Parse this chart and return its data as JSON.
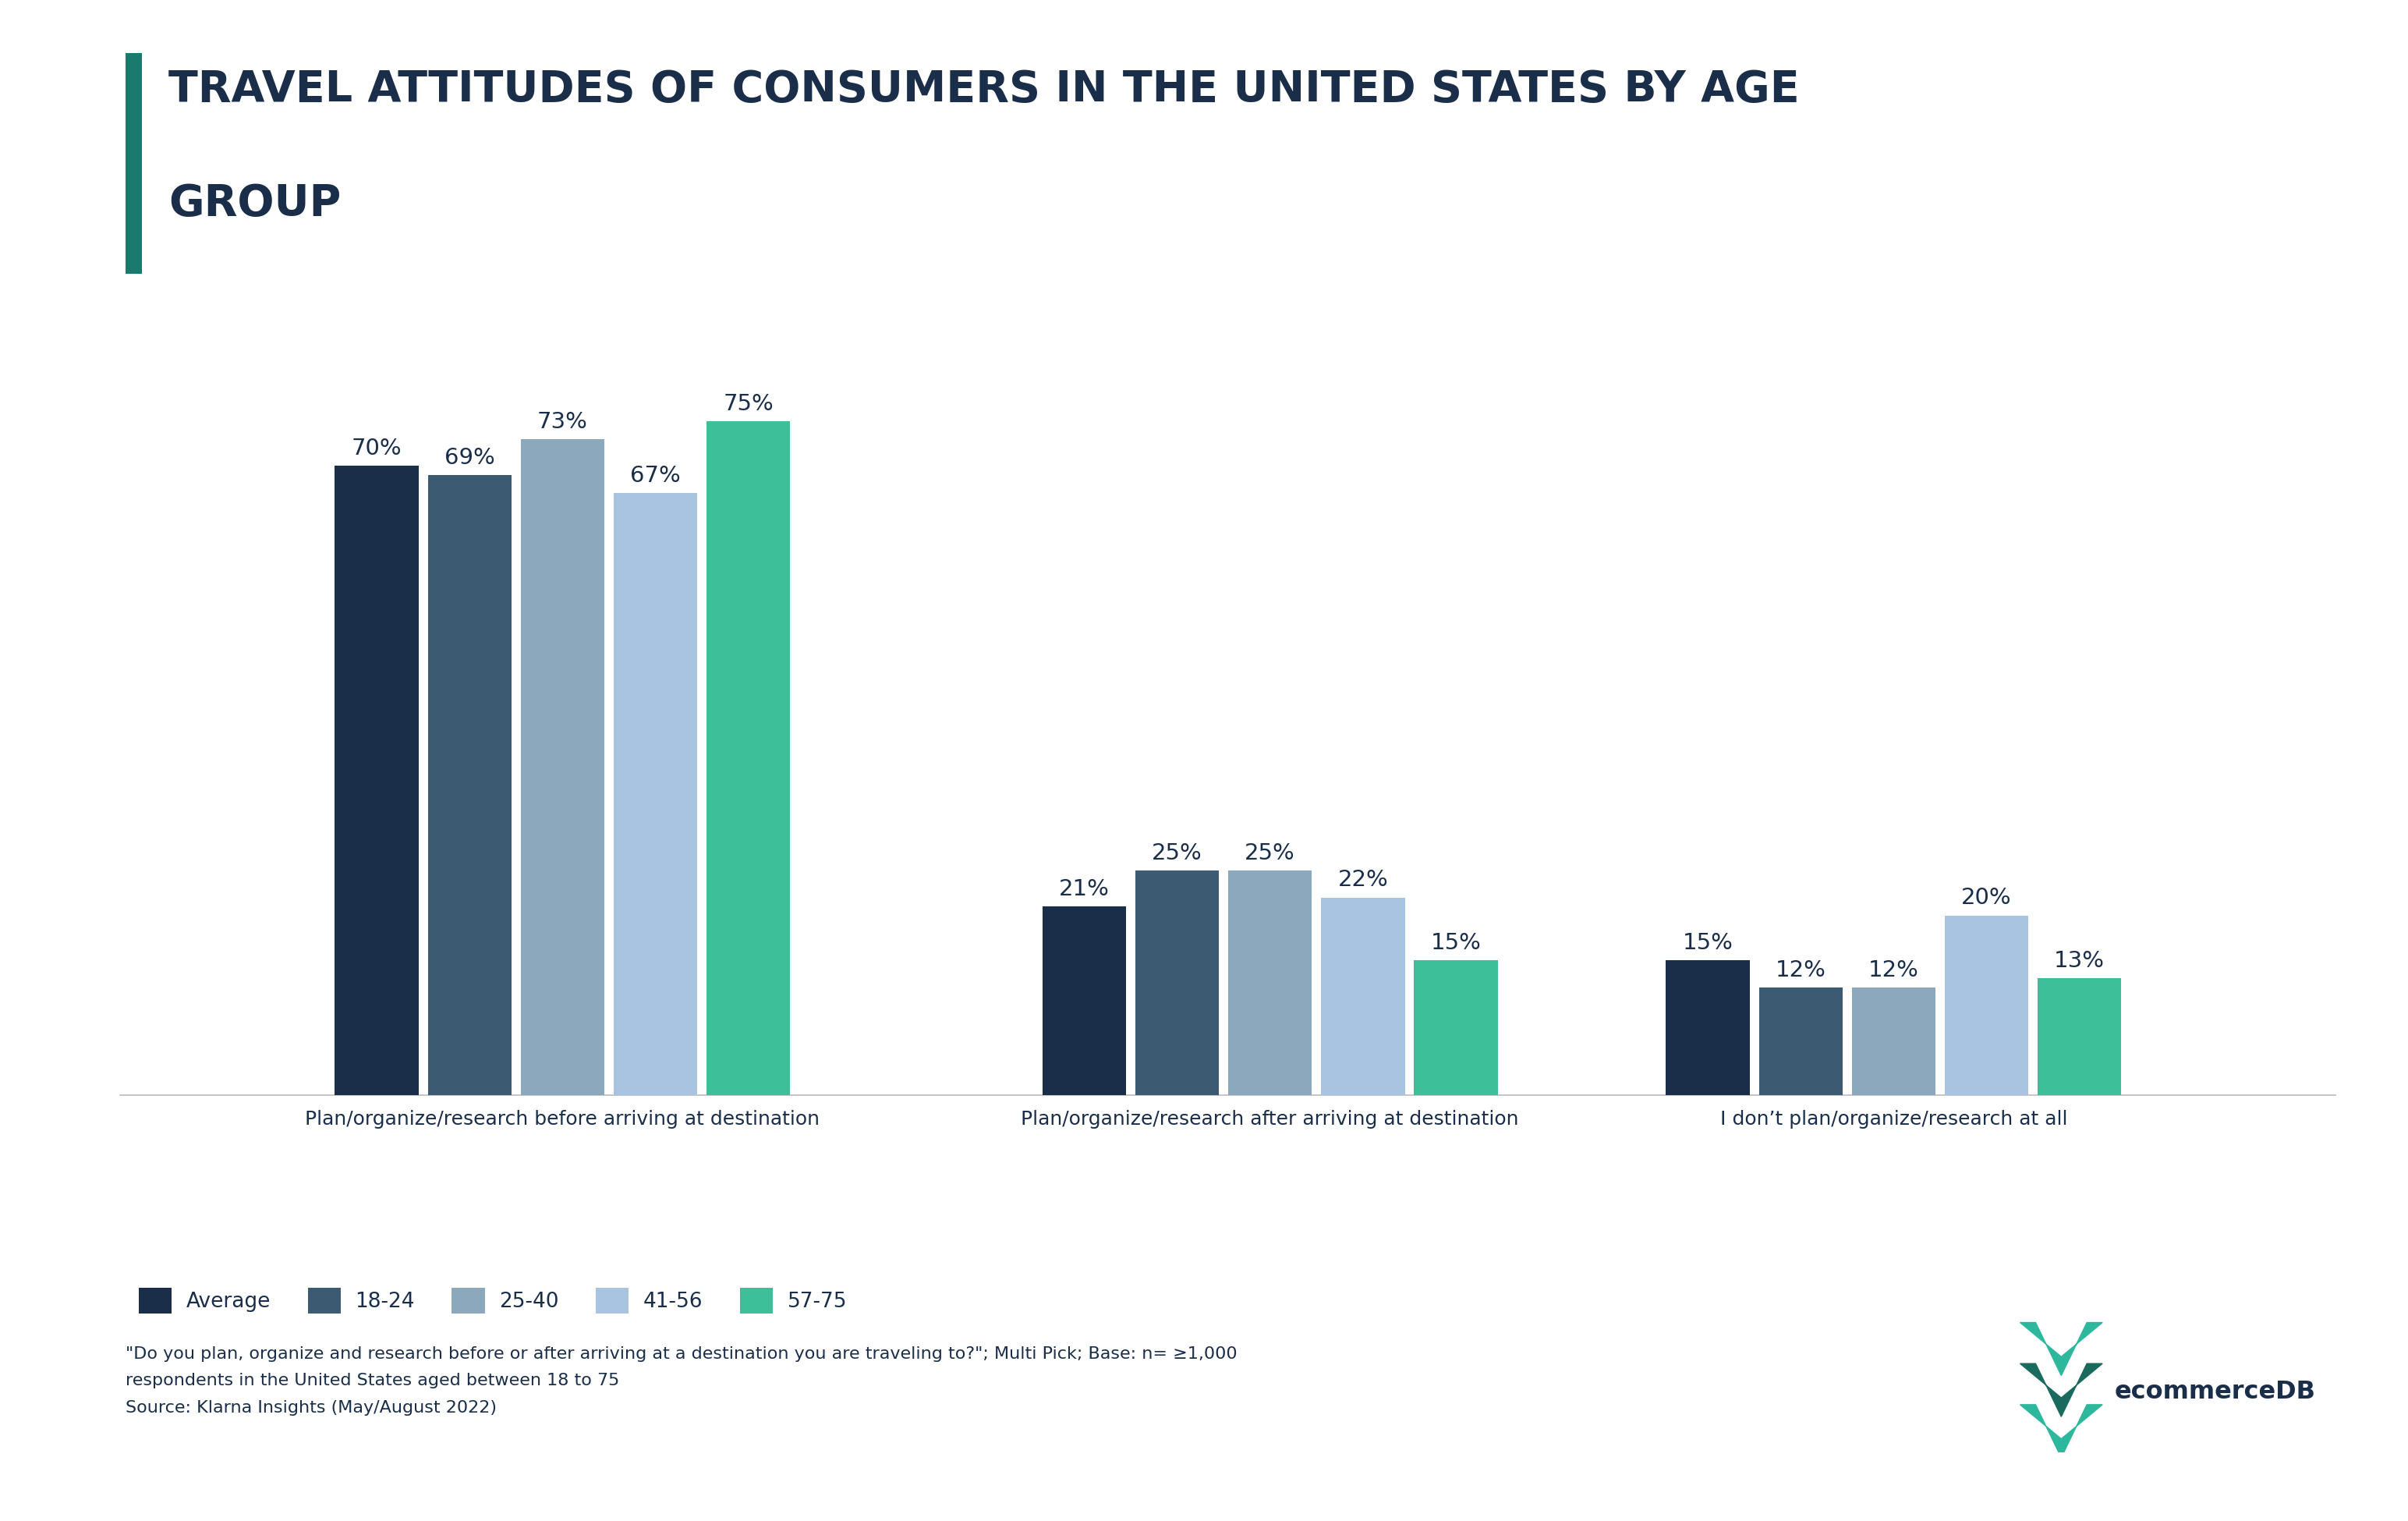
{
  "title_line1": "TRAVEL ATTITUDES OF CONSUMERS IN THE UNITED STATES BY AGE",
  "title_line2": "GROUP",
  "title_color": "#1a2e4a",
  "title_fontsize": 40,
  "title_accent_color": "#1a7a6e",
  "categories": [
    "Plan/organize/research before arriving at destination",
    "Plan/organize/research after arriving at destination",
    "I don’t plan/organize/research at all"
  ],
  "series": [
    {
      "label": "Average",
      "color": "#1a2e4a",
      "values": [
        70,
        21,
        15
      ]
    },
    {
      "label": "18-24",
      "color": "#3d5a73",
      "values": [
        69,
        25,
        12
      ]
    },
    {
      "label": "25-40",
      "color": "#8ba8bc",
      "values": [
        73,
        25,
        12
      ]
    },
    {
      "label": "41-56",
      "color": "#a8c4e0",
      "values": [
        67,
        22,
        20
      ]
    },
    {
      "label": "57-75",
      "color": "#3dbf99",
      "values": [
        75,
        15,
        13
      ]
    }
  ],
  "group_centers": [
    0.0,
    1.18,
    2.22
  ],
  "bar_width": 0.155,
  "ylim": [
    0,
    88
  ],
  "footnote_line1": "\"Do you plan, organize and research before or after arriving at a destination you are traveling to?\"; Multi Pick; Base: n= ≥1,000",
  "footnote_line2": "respondents in the United States aged between 18 to 75",
  "footnote_line3": "Source: Klarna Insights (May/August 2022)",
  "background_color": "#ffffff",
  "tick_fontsize": 18,
  "legend_fontsize": 19,
  "footnote_fontsize": 16,
  "value_fontsize": 21
}
